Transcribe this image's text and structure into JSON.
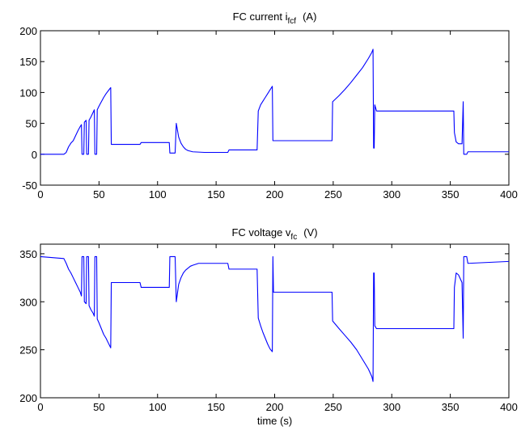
{
  "chart_data": [
    {
      "type": "line",
      "title": {
        "prefix": "FC current i",
        "subscript": "fcf",
        "unit": "(A)"
      },
      "xlabel": "",
      "ylabel": "",
      "xlim": [
        0,
        400
      ],
      "ylim": [
        -50,
        200
      ],
      "xticks": [
        0,
        50,
        100,
        150,
        200,
        250,
        300,
        350,
        400
      ],
      "yticks": [
        -50,
        0,
        50,
        100,
        150,
        200
      ],
      "grid": false,
      "line_color": "#0000ff",
      "series": [
        {
          "points": [
            [
              0,
              0
            ],
            [
              20,
              0
            ],
            [
              22,
              3
            ],
            [
              24,
              12
            ],
            [
              26,
              18
            ],
            [
              28,
              22
            ],
            [
              30,
              30
            ],
            [
              32,
              38
            ],
            [
              34,
              45
            ],
            [
              35,
              48
            ],
            [
              35.5,
              0
            ],
            [
              37,
              0
            ],
            [
              37.5,
              52
            ],
            [
              39,
              55
            ],
            [
              39.5,
              0
            ],
            [
              41,
              0
            ],
            [
              41.5,
              55
            ],
            [
              43,
              60
            ],
            [
              45,
              68
            ],
            [
              46,
              72
            ],
            [
              46.5,
              0
            ],
            [
              48,
              0
            ],
            [
              48.5,
              72
            ],
            [
              50,
              78
            ],
            [
              52,
              85
            ],
            [
              54,
              92
            ],
            [
              56,
              98
            ],
            [
              58,
              103
            ],
            [
              60,
              108
            ],
            [
              60.5,
              16
            ],
            [
              85,
              16
            ],
            [
              86,
              19
            ],
            [
              110,
              19
            ],
            [
              110.5,
              2
            ],
            [
              115,
              2
            ],
            [
              116,
              50
            ],
            [
              118,
              28
            ],
            [
              120,
              18
            ],
            [
              122,
              12
            ],
            [
              124,
              8
            ],
            [
              126,
              6
            ],
            [
              128,
              5
            ],
            [
              130,
              4
            ],
            [
              140,
              3
            ],
            [
              160,
              3
            ],
            [
              161,
              7
            ],
            [
              185,
              7
            ],
            [
              186,
              70
            ],
            [
              188,
              80
            ],
            [
              190,
              86
            ],
            [
              192,
              92
            ],
            [
              194,
              98
            ],
            [
              196,
              104
            ],
            [
              198,
              110
            ],
            [
              198.5,
              22
            ],
            [
              249,
              22
            ],
            [
              249.5,
              85
            ],
            [
              255,
              95
            ],
            [
              260,
              105
            ],
            [
              265,
              116
            ],
            [
              270,
              128
            ],
            [
              275,
              140
            ],
            [
              280,
              155
            ],
            [
              283,
              165
            ],
            [
              284,
              170
            ],
            [
              284.5,
              10
            ],
            [
              285,
              10
            ],
            [
              285.5,
              80
            ],
            [
              287,
              70
            ],
            [
              353,
              70
            ],
            [
              353.5,
              35
            ],
            [
              355,
              20
            ],
            [
              357,
              17
            ],
            [
              360,
              17
            ],
            [
              361,
              85
            ],
            [
              361.5,
              0
            ],
            [
              364,
              0
            ],
            [
              365,
              4
            ],
            [
              400,
              4
            ]
          ]
        }
      ]
    },
    {
      "type": "line",
      "title": {
        "prefix": "FC voltage v",
        "subscript": "fc",
        "unit": "(V)"
      },
      "xlabel": "time (s)",
      "ylabel": "",
      "xlim": [
        0,
        400
      ],
      "ylim": [
        200,
        360
      ],
      "xticks": [
        0,
        50,
        100,
        150,
        200,
        250,
        300,
        350,
        400
      ],
      "yticks": [
        200,
        250,
        300,
        350
      ],
      "grid": false,
      "line_color": "#0000ff",
      "series": [
        {
          "points": [
            [
              0,
              347
            ],
            [
              20,
              345
            ],
            [
              22,
              340
            ],
            [
              24,
              334
            ],
            [
              26,
              330
            ],
            [
              28,
              325
            ],
            [
              30,
              320
            ],
            [
              32,
              315
            ],
            [
              34,
              310
            ],
            [
              35,
              306
            ],
            [
              35.5,
              347
            ],
            [
              37,
              347
            ],
            [
              37.5,
              300
            ],
            [
              39,
              298
            ],
            [
              39.5,
              347
            ],
            [
              41,
              347
            ],
            [
              41.5,
              296
            ],
            [
              43,
              292
            ],
            [
              45,
              288
            ],
            [
              46,
              285
            ],
            [
              46.5,
              347
            ],
            [
              48,
              347
            ],
            [
              48.5,
              282
            ],
            [
              50,
              278
            ],
            [
              52,
              272
            ],
            [
              54,
              266
            ],
            [
              56,
              262
            ],
            [
              58,
              257
            ],
            [
              60,
              252
            ],
            [
              60.5,
              320
            ],
            [
              85,
              320
            ],
            [
              86,
              315
            ],
            [
              110,
              315
            ],
            [
              110.5,
              347
            ],
            [
              115,
              347
            ],
            [
              116,
              300
            ],
            [
              118,
              318
            ],
            [
              120,
              325
            ],
            [
              122,
              330
            ],
            [
              124,
              333
            ],
            [
              126,
              335
            ],
            [
              128,
              337
            ],
            [
              130,
              338
            ],
            [
              135,
              340
            ],
            [
              160,
              340
            ],
            [
              161,
              334
            ],
            [
              185,
              334
            ],
            [
              186,
              283
            ],
            [
              188,
              275
            ],
            [
              190,
              268
            ],
            [
              192,
              262
            ],
            [
              194,
              256
            ],
            [
              196,
              251
            ],
            [
              198,
              248
            ],
            [
              198.5,
              347
            ],
            [
              199,
              310
            ],
            [
              249,
              310
            ],
            [
              249.5,
              280
            ],
            [
              255,
              272
            ],
            [
              260,
              265
            ],
            [
              265,
              258
            ],
            [
              270,
              250
            ],
            [
              275,
              240
            ],
            [
              280,
              230
            ],
            [
              283,
              222
            ],
            [
              284,
              217
            ],
            [
              284.5,
              330
            ],
            [
              285,
              330
            ],
            [
              285.5,
              275
            ],
            [
              287,
              272
            ],
            [
              353,
              272
            ],
            [
              353.5,
              315
            ],
            [
              355,
              330
            ],
            [
              357,
              328
            ],
            [
              360,
              320
            ],
            [
              361,
              262
            ],
            [
              361.5,
              347
            ],
            [
              364,
              347
            ],
            [
              365,
              340
            ],
            [
              400,
              342
            ]
          ]
        }
      ]
    }
  ]
}
